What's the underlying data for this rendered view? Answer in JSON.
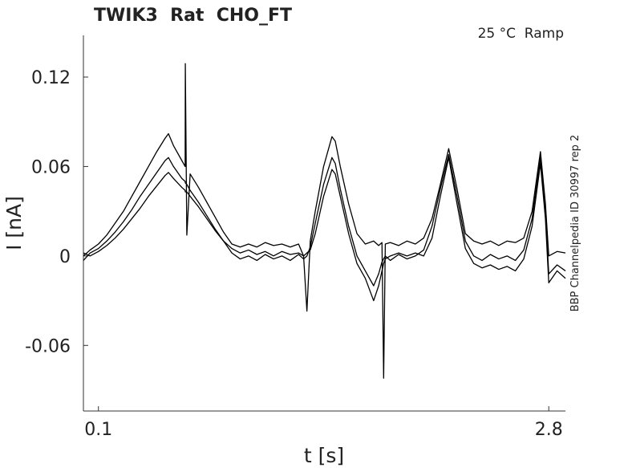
{
  "chart_data": {
    "type": "line",
    "title": "TWIK3  Rat  CHO_FT",
    "annotation": "25 °C  Ramp",
    "side_label": "BBP Channelpedia ID 30997 rep 2",
    "xlabel": "t [s]",
    "ylabel": "I [nA]",
    "xlim": [
      0.01,
      2.9
    ],
    "ylim": [
      -0.104,
      0.148
    ],
    "xticks": [
      0.1,
      2.8
    ],
    "yticks": [
      -0.06,
      0,
      0.06,
      0.12
    ],
    "grid": false,
    "x": [
      0.01,
      0.05,
      0.1,
      0.15,
      0.2,
      0.25,
      0.3,
      0.35,
      0.4,
      0.45,
      0.5,
      0.52,
      0.55,
      0.6,
      0.62,
      0.621,
      0.63,
      0.65,
      0.7,
      0.75,
      0.8,
      0.85,
      0.9,
      0.95,
      1.0,
      1.05,
      1.1,
      1.15,
      1.2,
      1.25,
      1.3,
      1.33,
      1.35,
      1.37,
      1.4,
      1.45,
      1.5,
      1.52,
      1.55,
      1.6,
      1.65,
      1.7,
      1.75,
      1.78,
      1.8,
      1.81,
      1.82,
      1.85,
      1.9,
      1.95,
      2.0,
      2.05,
      2.1,
      2.15,
      2.2,
      2.25,
      2.3,
      2.35,
      2.4,
      2.45,
      2.5,
      2.55,
      2.6,
      2.65,
      2.7,
      2.75,
      2.78,
      2.8,
      2.85,
      2.9
    ],
    "series": [
      {
        "color": "#000000",
        "values": [
          0.0,
          0.004,
          0.008,
          0.014,
          0.022,
          0.03,
          0.04,
          0.05,
          0.06,
          0.07,
          0.079,
          0.082,
          0.074,
          0.064,
          0.06,
          0.129,
          0.014,
          0.055,
          0.046,
          0.036,
          0.026,
          0.016,
          0.008,
          0.006,
          0.008,
          0.006,
          0.009,
          0.007,
          0.008,
          0.006,
          0.008,
          0.0,
          -0.037,
          0.01,
          0.03,
          0.06,
          0.08,
          0.077,
          0.06,
          0.035,
          0.015,
          0.008,
          0.01,
          0.007,
          0.009,
          -0.082,
          0.008,
          0.009,
          0.007,
          0.01,
          0.008,
          0.012,
          0.025,
          0.048,
          0.072,
          0.045,
          0.015,
          0.01,
          0.008,
          0.01,
          0.007,
          0.01,
          0.009,
          0.012,
          0.03,
          0.07,
          0.035,
          0.0,
          0.003,
          0.002
        ]
      },
      {
        "color": "#000000",
        "values": [
          -0.003,
          0.002,
          0.005,
          0.01,
          0.016,
          0.023,
          0.031,
          0.04,
          0.048,
          0.056,
          0.064,
          0.066,
          0.06,
          0.052,
          0.05,
          0.049,
          0.048,
          0.044,
          0.036,
          0.027,
          0.018,
          0.01,
          0.002,
          -0.002,
          0.0,
          -0.003,
          0.001,
          -0.002,
          0.0,
          -0.003,
          0.001,
          -0.002,
          0.0,
          0.006,
          0.022,
          0.048,
          0.066,
          0.062,
          0.045,
          0.02,
          0.0,
          -0.01,
          -0.02,
          -0.012,
          -0.004,
          -0.002,
          0.0,
          -0.003,
          0.001,
          -0.002,
          0.0,
          0.004,
          0.02,
          0.045,
          0.068,
          0.04,
          0.01,
          0.0,
          -0.003,
          0.001,
          -0.002,
          0.0,
          -0.003,
          0.004,
          0.025,
          0.066,
          0.03,
          -0.012,
          -0.006,
          -0.01
        ]
      },
      {
        "color": "#000000",
        "values": [
          0.002,
          0.0,
          0.003,
          0.007,
          0.012,
          0.018,
          0.025,
          0.032,
          0.04,
          0.047,
          0.054,
          0.056,
          0.052,
          0.046,
          0.044,
          0.043,
          0.043,
          0.04,
          0.033,
          0.025,
          0.017,
          0.01,
          0.005,
          0.002,
          0.004,
          0.001,
          0.003,
          0.0,
          0.003,
          0.001,
          0.002,
          0.0,
          0.002,
          0.004,
          0.015,
          0.04,
          0.058,
          0.055,
          0.04,
          0.015,
          -0.005,
          -0.015,
          -0.03,
          -0.02,
          -0.01,
          -0.005,
          -0.002,
          0.0,
          0.002,
          0.0,
          0.002,
          0.0,
          0.012,
          0.04,
          0.066,
          0.035,
          0.005,
          -0.005,
          -0.008,
          -0.006,
          -0.009,
          -0.007,
          -0.01,
          -0.002,
          0.02,
          0.062,
          0.025,
          -0.018,
          -0.01,
          -0.015
        ]
      }
    ]
  }
}
